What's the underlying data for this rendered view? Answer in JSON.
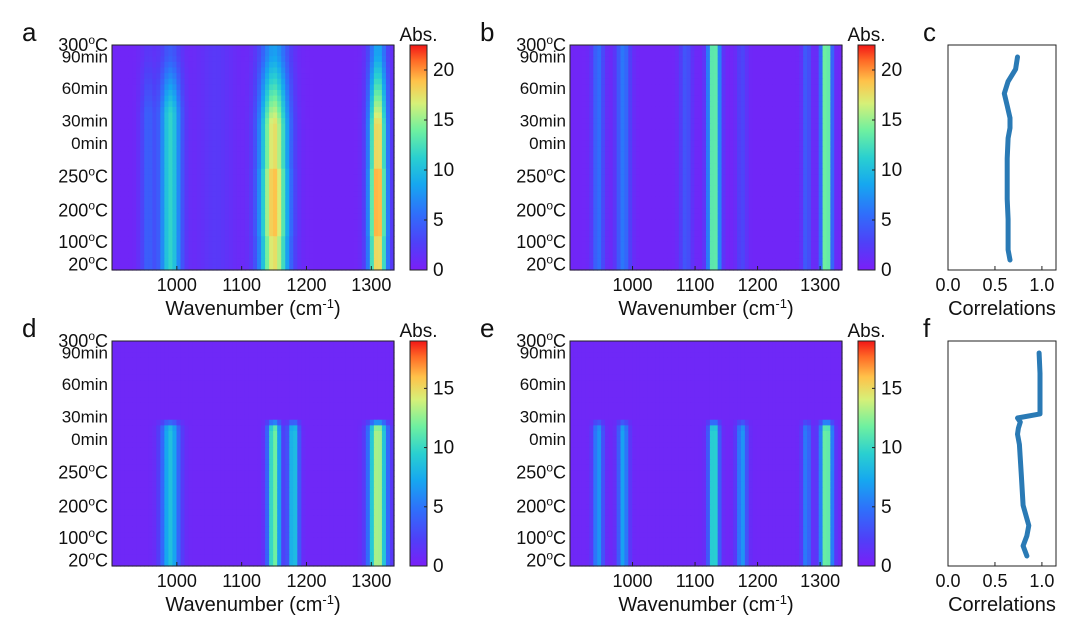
{
  "figure": {
    "description_free": true
  },
  "chart_data": [
    {
      "id": "a",
      "type": "heatmap",
      "panel_letter": "a",
      "xlabel": "Wavenumber (cm",
      "xlabel_sup": "-1",
      "xlabel_close": ")",
      "xlim": [
        900,
        1335
      ],
      "xticks": [
        1000,
        1100,
        1200,
        1300
      ],
      "y_labels": [
        "300oC",
        "90min",
        "60min",
        "30min",
        "0min",
        "250oC",
        "200oC",
        "100oC",
        "20oC"
      ],
      "colorbar": {
        "title": "Abs.",
        "min": 0,
        "max": 22.5,
        "ticks": [
          0,
          5,
          10,
          15,
          20
        ]
      },
      "peaks": [
        {
          "center": 955,
          "width": 8,
          "amp": 4.0,
          "shape": "top-fade"
        },
        {
          "center": 990,
          "width": 12,
          "amp": 11.0,
          "shape": "top-fade"
        },
        {
          "center": 1060,
          "width": 20,
          "amp": 1.5,
          "shape": "flat"
        },
        {
          "center": 1150,
          "width": 16,
          "amp": 17.0,
          "shape": "mid-strong"
        },
        {
          "center": 1310,
          "width": 10,
          "amp": 18.0,
          "shape": "mid-strong"
        }
      ]
    },
    {
      "id": "b",
      "type": "heatmap",
      "panel_letter": "b",
      "xlabel": "Wavenumber (cm",
      "xlabel_sup": "-1",
      "xlabel_close": ")",
      "xlim": [
        900,
        1335
      ],
      "xticks": [
        1000,
        1100,
        1200,
        1300
      ],
      "y_labels": [
        "300oC",
        "90min",
        "60min",
        "30min",
        "0min",
        "250oC",
        "200oC",
        "100oC",
        "20oC"
      ],
      "colorbar": {
        "title": "Abs.",
        "min": 0,
        "max": 22.5,
        "ticks": [
          0,
          5,
          10,
          15,
          20
        ]
      },
      "peaks": [
        {
          "center": 945,
          "width": 7,
          "amp": 5.0,
          "shape": "flat"
        },
        {
          "center": 985,
          "width": 8,
          "amp": 5.5,
          "shape": "flat"
        },
        {
          "center": 1085,
          "width": 7,
          "amp": 3.5,
          "shape": "flat"
        },
        {
          "center": 1130,
          "width": 7,
          "amp": 14.0,
          "shape": "flat"
        },
        {
          "center": 1175,
          "width": 6,
          "amp": 2.5,
          "shape": "flat"
        },
        {
          "center": 1278,
          "width": 5,
          "amp": 4.0,
          "shape": "flat"
        },
        {
          "center": 1310,
          "width": 6,
          "amp": 15.0,
          "shape": "flat"
        }
      ]
    },
    {
      "id": "c",
      "type": "line",
      "panel_letter": "c",
      "xlabel": "Correlations",
      "xlim": [
        0,
        1.15
      ],
      "xticks": [
        0.0,
        0.5,
        1.0
      ],
      "xtick_labels": [
        "0.0",
        "0.5",
        "1.0"
      ],
      "y_fraction": [
        0.0,
        0.05,
        0.1,
        0.2,
        0.3,
        0.4,
        0.5,
        0.6,
        0.65,
        0.7,
        0.76,
        0.82,
        0.88,
        0.94,
        1.0
      ],
      "x": [
        0.66,
        0.64,
        0.64,
        0.64,
        0.63,
        0.63,
        0.63,
        0.64,
        0.66,
        0.66,
        0.63,
        0.6,
        0.64,
        0.72,
        0.74
      ]
    },
    {
      "id": "d",
      "type": "heatmap",
      "panel_letter": "d",
      "xlabel": "Wavenumber (cm",
      "xlabel_sup": "-1",
      "xlabel_close": ")",
      "xlim": [
        900,
        1335
      ],
      "xticks": [
        1000,
        1100,
        1200,
        1300
      ],
      "y_labels": [
        "300oC",
        "90min",
        "60min",
        "30min",
        "0min",
        "250oC",
        "200oC",
        "100oC",
        "20oC"
      ],
      "colorbar": {
        "title": "Abs.",
        "min": 0,
        "max": 19,
        "ticks": [
          0,
          5,
          10,
          15
        ]
      },
      "peaks": [
        {
          "center": 990,
          "width": 10,
          "amp": 8.0,
          "shape": "bottom-only"
        },
        {
          "center": 1150,
          "width": 7,
          "amp": 11.5,
          "shape": "bottom-only"
        },
        {
          "center": 1180,
          "width": 6,
          "amp": 8.5,
          "shape": "bottom-only"
        },
        {
          "center": 1310,
          "width": 10,
          "amp": 13.0,
          "shape": "bottom-only"
        }
      ]
    },
    {
      "id": "e",
      "type": "heatmap",
      "panel_letter": "e",
      "xlabel": "Wavenumber (cm",
      "xlabel_sup": "-1",
      "xlabel_close": ")",
      "xlim": [
        900,
        1335
      ],
      "xticks": [
        1000,
        1100,
        1200,
        1300
      ],
      "y_labels": [
        "300oC",
        "90min",
        "60min",
        "30min",
        "0min",
        "250oC",
        "200oC",
        "100oC",
        "20oC"
      ],
      "colorbar": {
        "title": "Abs.",
        "min": 0,
        "max": 19,
        "ticks": [
          0,
          5,
          10,
          15
        ]
      },
      "peaks": [
        {
          "center": 945,
          "width": 6,
          "amp": 6.0,
          "shape": "bottom-only"
        },
        {
          "center": 985,
          "width": 6,
          "amp": 6.5,
          "shape": "bottom-only"
        },
        {
          "center": 1130,
          "width": 6,
          "amp": 10.0,
          "shape": "bottom-only"
        },
        {
          "center": 1175,
          "width": 6,
          "amp": 6.0,
          "shape": "bottom-only"
        },
        {
          "center": 1278,
          "width": 5,
          "amp": 5.0,
          "shape": "bottom-only"
        },
        {
          "center": 1310,
          "width": 7,
          "amp": 12.0,
          "shape": "bottom-only"
        }
      ]
    },
    {
      "id": "f",
      "type": "line",
      "panel_letter": "f",
      "xlabel": "Correlations",
      "xlim": [
        0,
        1.15
      ],
      "xticks": [
        0.0,
        0.5,
        1.0
      ],
      "xtick_labels": [
        "0.0",
        "0.5",
        "1.0"
      ],
      "y_fraction": [
        0.0,
        0.05,
        0.1,
        0.15,
        0.25,
        0.4,
        0.55,
        0.6,
        0.63,
        0.66,
        0.68,
        0.7,
        0.8,
        0.9,
        1.0
      ],
      "x": [
        0.84,
        0.8,
        0.84,
        0.86,
        0.8,
        0.78,
        0.76,
        0.74,
        0.75,
        0.77,
        0.74,
        0.98,
        0.98,
        0.98,
        0.97
      ]
    }
  ]
}
